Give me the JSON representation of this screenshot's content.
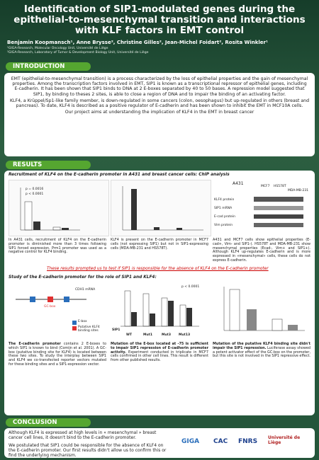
{
  "header": {
    "title": "Identification of SIP1-modulated genes during the epithelial-to-mesenchymal transition and interactions with KLF factors in EMT control",
    "authors": "Benjamin Koopmansch¹, Anne Brysse², Christine Gilles², Jean-Michel Foidart², Rosita Winkler¹",
    "affiliations": [
      "¹GIGA-Research, Molecular Oncology Unit, Université de Liège",
      "²GIGA-Research, Laboratory of Tumor & Development Biology Unit, Université de Liège"
    ]
  },
  "introduction": {
    "heading": "INTRODUCTION",
    "paragraphs": [
      "EMT (epithelial-to-mesenchymal transition) is a process characterized by the loss of epithelial properties and the gain of mesenchymal properties. Among the transcription factors involved in EMT, SIP1 is known as a transcriptional repressor of epithelial genes, including E-cadherin. It has been shown that SIP1 binds to DNA at 2 E-boxes separated by 40 to 50 bases. A repression model suggested that SIP1, by binding to theses 2 sites, is able to close a region of DNA and to impair the binding of an activating factor.",
      "KLF4, a Krüppel/Sp1-like family member, is down-regulated in some cancers (colon, oesophagus) but up-regulated in others (breast and pancreas). To date, KLF4 is described as a positive regulator of E-cadherin and has been shown to inhibit the EMT in MCF10A cells.",
      "Our project aims at understanding the implication of KLF4 in the EMT in breast cancer"
    ]
  },
  "results": {
    "heading": "RESULTS",
    "section1": {
      "title": "Recruitment of KLF4 on the E-cadherin promoter in A431 and breast cancer cells: ChIP analysis",
      "labels": [
        "p = 0.0016",
        "p < 0.0001",
        "A431",
        "KLF4 protein",
        "SIP1 mRNA",
        "E-cad protein",
        "Vim protein",
        "MCF7",
        "HS578T",
        "MDA-MB-231"
      ],
      "captions": [
        "In A431 cells, recruitment of KLF4 on the E-cadherin promoter is diminished more than 3 times following SIP1 forced expression. Prm1 promoter was used as a negative control for KLF4 binding.",
        "KLF4 is present on the E-cadherin promoter in MCF7 cells (not expressing SIP1) but not in SIP1-expressing cells (MDA-MB-231 and HS578T).",
        "A431 and MCF7 cells show epithelial properties (E-cad+, Vim- and SIP1-). HS578T and MDA-MB-231 show mesenchymal properties (Ecad-, Vim+ and SIP1+). Although KLF4 up-regulates E-cadherin and is more expressed in «mesenchymal» cells, these cells do not express E-cadherin."
      ],
      "note": "These results prompted us to test if SIP1 is responsible for the absence of KLF4 on the E-cadherin promoter"
    },
    "section2": {
      "title": "Study of the E-cadherin promoter for the role of SIP1 and KLF4:",
      "labels": [
        "CDH1 mRNA",
        "E-box",
        "Putative KLF4 binding sites",
        "GC-box",
        "SIP1",
        "WT",
        "Mut1",
        "Mut3",
        "Mut13",
        "p < 0.0001"
      ],
      "captions": [
        {
          "lead": "The E-cadherin promoter",
          "text": " contains 2 E-boxes to which SIP1 is known to bind (Comijn et al. 2001). A GC-box (putative binding site for KLF4) is located between these two sites. To study the interplay between SIP1 and KLF4 we co-transfected reporter vectors mutated for these binding sites and a SIP1-expression vector."
        },
        {
          "lead": "Mutation of the E-box located at -75 is sufficient to impair SIP1 repression of E-cadherin promoter activity.",
          "text": " Experiment conducted in triplicate in MCF7 cells confirmed in other cell lines. This result is different from other published results."
        },
        {
          "lead": "Mutation of the putative KLF4 binding site didn't impair the SIP1 repression.",
          "text": " Luciferase assay showed a potent activator effect of the GC-box on the promoter, but this site is not involved in the SIP1 repressive effect."
        }
      ]
    }
  },
  "conclusion": {
    "heading": "CONCLUSION",
    "paragraphs": [
      "Although KLF4 is expressed at high levels in « mesenchymal » breast cancer cell lines, it doesn't bind to the E-cadherin promoter.",
      "We postulated that SIP1 could be responsible for the absence of KLF4 on the E-cadherin promoter. Our first results didn't allow us to confirm this or find the underlying mechanism."
    ]
  },
  "logos": [
    "GIGA",
    "CAC",
    "FNRS",
    "Université de Liège"
  ]
}
